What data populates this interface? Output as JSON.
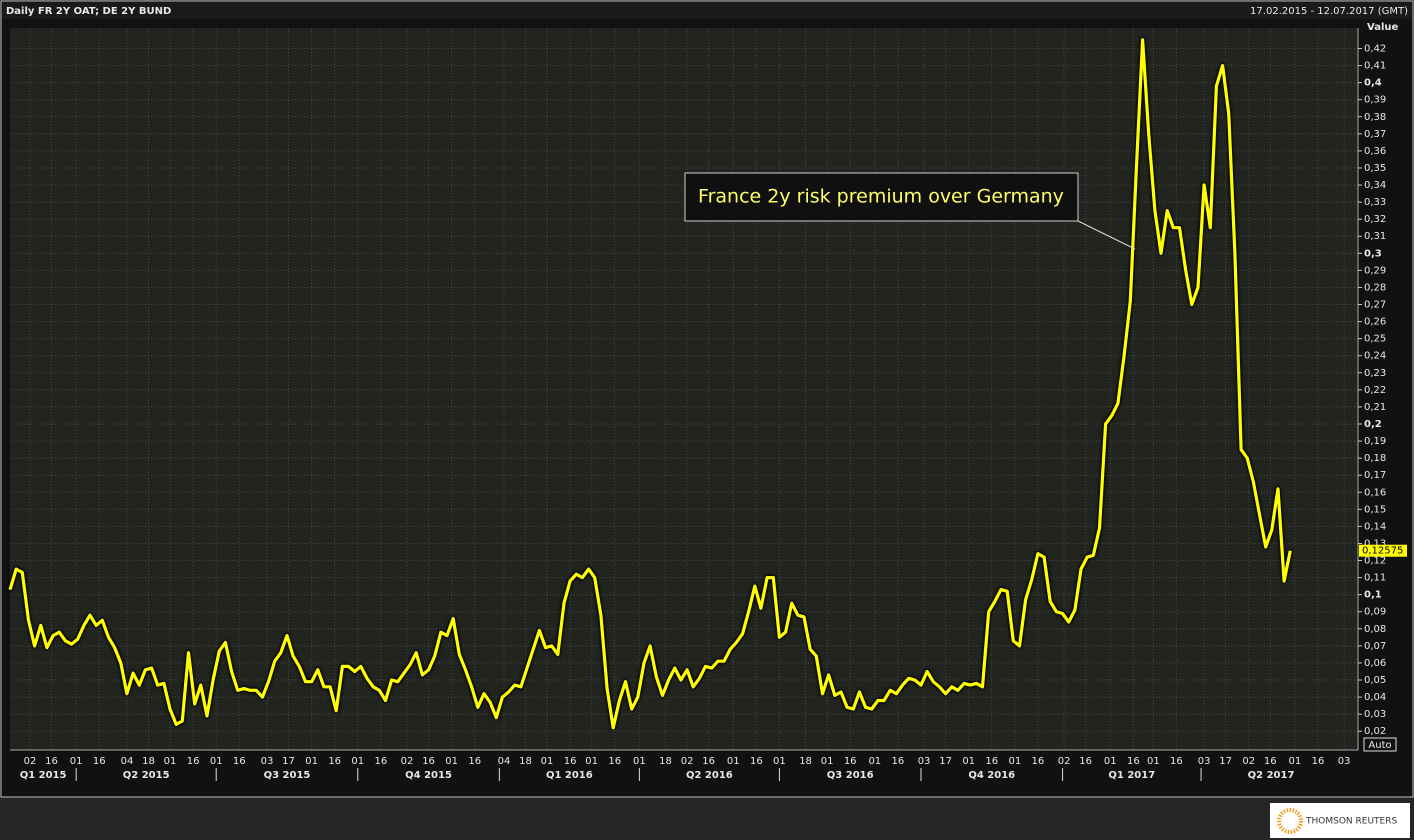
{
  "chart_data": {
    "type": "line",
    "title": "Daily FR 2Y OAT; DE 2Y BUND",
    "subtitle": "17.02.2015 - 12.07.2017 (GMT)",
    "ylabel": "Value",
    "annotation": "France 2y risk premium over Germany",
    "button": "Auto",
    "logo": "THOMSON REUTERS",
    "grid": true,
    "series": [
      {
        "name": "FR 2Y OAT; DE 2Y BUND",
        "color": "#ffff00",
        "x": [
          "2015-02-17",
          "2015-02-21",
          "2015-02-25",
          "2015-03-01",
          "2015-03-05",
          "2015-03-09",
          "2015-03-13",
          "2015-03-17",
          "2015-03-21",
          "2015-03-25",
          "2015-03-29",
          "2015-04-02",
          "2015-04-06",
          "2015-04-10",
          "2015-04-14",
          "2015-04-18",
          "2015-04-22",
          "2015-04-26",
          "2015-04-30",
          "2015-05-04",
          "2015-05-08",
          "2015-05-12",
          "2015-05-16",
          "2015-05-20",
          "2015-05-24",
          "2015-05-28",
          "2015-06-01",
          "2015-06-05",
          "2015-06-09",
          "2015-06-13",
          "2015-06-17",
          "2015-06-21",
          "2015-06-25",
          "2015-06-29",
          "2015-07-03",
          "2015-07-07",
          "2015-07-11",
          "2015-07-15",
          "2015-07-19",
          "2015-07-23",
          "2015-07-27",
          "2015-07-31",
          "2015-08-04",
          "2015-08-08",
          "2015-08-12",
          "2015-08-16",
          "2015-08-20",
          "2015-08-24",
          "2015-08-28",
          "2015-09-01",
          "2015-09-05",
          "2015-09-09",
          "2015-09-13",
          "2015-09-17",
          "2015-09-21",
          "2015-09-25",
          "2015-09-29",
          "2015-10-03",
          "2015-10-07",
          "2015-10-11",
          "2015-10-15",
          "2015-10-19",
          "2015-10-23",
          "2015-10-27",
          "2015-10-31",
          "2015-11-04",
          "2015-11-08",
          "2015-11-12",
          "2015-11-16",
          "2015-11-20",
          "2015-11-24",
          "2015-11-28",
          "2015-12-02",
          "2015-12-06",
          "2015-12-10",
          "2015-12-14",
          "2015-12-18",
          "2015-12-22",
          "2015-12-26",
          "2015-12-30",
          "2016-01-03",
          "2016-01-07",
          "2016-01-11",
          "2016-01-15",
          "2016-01-19",
          "2016-01-23",
          "2016-01-27",
          "2016-01-31",
          "2016-02-04",
          "2016-02-08",
          "2016-02-12",
          "2016-02-16",
          "2016-02-20",
          "2016-02-24",
          "2016-02-28",
          "2016-03-03",
          "2016-03-07",
          "2016-03-11",
          "2016-03-15",
          "2016-03-19",
          "2016-03-23",
          "2016-03-27",
          "2016-03-31",
          "2016-04-04",
          "2016-04-08",
          "2016-04-12",
          "2016-04-16",
          "2016-04-20",
          "2016-04-24",
          "2016-04-28",
          "2016-05-02",
          "2016-05-06",
          "2016-05-10",
          "2016-05-14",
          "2016-05-18",
          "2016-05-22",
          "2016-05-26",
          "2016-05-30",
          "2016-06-03",
          "2016-06-07",
          "2016-06-11",
          "2016-06-15",
          "2016-06-19",
          "2016-06-23",
          "2016-06-27",
          "2016-07-01",
          "2016-07-05",
          "2016-07-09",
          "2016-07-13",
          "2016-07-17",
          "2016-07-21",
          "2016-07-25",
          "2016-07-29",
          "2016-08-02",
          "2016-08-06",
          "2016-08-10",
          "2016-08-14",
          "2016-08-18",
          "2016-08-22",
          "2016-08-26",
          "2016-08-30",
          "2016-09-03",
          "2016-09-07",
          "2016-09-11",
          "2016-09-15",
          "2016-09-19",
          "2016-09-23",
          "2016-09-27",
          "2016-10-01",
          "2016-10-05",
          "2016-10-09",
          "2016-10-13",
          "2016-10-17",
          "2016-10-21",
          "2016-10-25",
          "2016-10-29",
          "2016-11-02",
          "2016-11-06",
          "2016-11-10",
          "2016-11-14",
          "2016-11-18",
          "2016-11-22",
          "2016-11-26",
          "2016-11-30",
          "2016-12-04",
          "2016-12-08",
          "2016-12-12",
          "2016-12-16",
          "2016-12-20",
          "2016-12-24",
          "2016-12-28",
          "2017-01-01",
          "2017-01-05",
          "2017-01-09",
          "2017-01-13",
          "2017-01-17",
          "2017-01-21",
          "2017-01-25",
          "2017-01-29",
          "2017-02-02",
          "2017-02-06",
          "2017-02-10",
          "2017-02-14",
          "2017-02-18",
          "2017-02-22",
          "2017-02-26",
          "2017-03-02",
          "2017-03-06",
          "2017-03-10",
          "2017-03-14",
          "2017-03-18",
          "2017-03-22",
          "2017-03-26",
          "2017-03-30",
          "2017-04-03",
          "2017-04-07",
          "2017-04-11",
          "2017-04-15",
          "2017-04-19",
          "2017-04-23",
          "2017-04-27",
          "2017-05-01",
          "2017-05-05",
          "2017-05-09",
          "2017-05-13",
          "2017-05-17",
          "2017-05-21",
          "2017-05-25",
          "2017-05-29"
        ],
        "values": [
          0.103,
          0.115,
          0.113,
          0.085,
          0.07,
          0.082,
          0.069,
          0.076,
          0.078,
          0.073,
          0.071,
          0.074,
          0.082,
          0.088,
          0.082,
          0.085,
          0.075,
          0.069,
          0.06,
          0.042,
          0.054,
          0.047,
          0.056,
          0.057,
          0.047,
          0.048,
          0.033,
          0.024,
          0.026,
          0.066,
          0.036,
          0.047,
          0.029,
          0.05,
          0.067,
          0.072,
          0.055,
          0.044,
          0.045,
          0.044,
          0.044,
          0.04,
          0.049,
          0.061,
          0.066,
          0.076,
          0.064,
          0.058,
          0.049,
          0.049,
          0.056,
          0.046,
          0.046,
          0.032,
          0.058,
          0.058,
          0.055,
          0.058,
          0.051,
          0.046,
          0.044,
          0.038,
          0.05,
          0.049,
          0.054,
          0.059,
          0.066,
          0.053,
          0.056,
          0.064,
          0.078,
          0.076,
          0.086,
          0.065,
          0.056,
          0.046,
          0.034,
          0.042,
          0.037,
          0.028,
          0.04,
          0.043,
          0.047,
          0.046,
          0.057,
          0.068,
          0.079,
          0.069,
          0.07,
          0.065,
          0.095,
          0.108,
          0.112,
          0.11,
          0.115,
          0.11,
          0.088,
          0.045,
          0.022,
          0.038,
          0.049,
          0.033,
          0.04,
          0.06,
          0.07,
          0.052,
          0.041,
          0.05,
          0.057,
          0.05,
          0.056,
          0.046,
          0.051,
          0.058,
          0.057,
          0.061,
          0.061,
          0.068,
          0.072,
          0.077,
          0.09,
          0.105,
          0.092,
          0.11,
          0.11,
          0.075,
          0.078,
          0.095,
          0.088,
          0.087,
          0.068,
          0.064,
          0.042,
          0.053,
          0.041,
          0.043,
          0.034,
          0.033,
          0.043,
          0.034,
          0.033,
          0.038,
          0.038,
          0.044,
          0.042,
          0.047,
          0.051,
          0.05,
          0.047,
          0.055,
          0.049,
          0.046,
          0.042,
          0.046,
          0.044,
          0.048,
          0.047,
          0.048,
          0.046,
          0.09,
          0.096,
          0.103,
          0.102,
          0.073,
          0.07,
          0.097,
          0.109,
          0.124,
          0.122,
          0.096,
          0.09,
          0.089,
          0.084,
          0.091,
          0.115,
          0.122,
          0.123,
          0.139,
          0.2,
          0.205,
          0.212,
          0.24,
          0.272,
          0.35,
          0.425,
          0.37,
          0.325,
          0.3,
          0.325,
          0.315,
          0.315,
          0.29,
          0.27,
          0.28,
          0.34,
          0.315,
          0.398,
          0.41,
          0.382,
          0.3,
          0.185,
          0.18,
          0.166,
          0.147,
          0.128,
          0.138,
          0.162,
          0.108,
          0.12575
        ],
        "last_label": "0,12575"
      }
    ],
    "xlim": [
      "2015-02-17",
      "2017-07-12"
    ],
    "xticks": [
      {
        "value": "2015-03-02",
        "label": "02"
      },
      {
        "value": "2015-03-16",
        "label": "16"
      },
      {
        "value": "2015-04-01",
        "label": "01"
      },
      {
        "value": "2015-04-16",
        "label": "16"
      },
      {
        "value": "2015-05-04",
        "label": "04"
      },
      {
        "value": "2015-05-18",
        "label": "18"
      },
      {
        "value": "2015-06-01",
        "label": "01"
      },
      {
        "value": "2015-06-16",
        "label": "16"
      },
      {
        "value": "2015-07-01",
        "label": "01"
      },
      {
        "value": "2015-07-16",
        "label": "16"
      },
      {
        "value": "2015-08-03",
        "label": "03"
      },
      {
        "value": "2015-08-17",
        "label": "17"
      },
      {
        "value": "2015-09-01",
        "label": "01"
      },
      {
        "value": "2015-09-16",
        "label": "16"
      },
      {
        "value": "2015-10-01",
        "label": "01"
      },
      {
        "value": "2015-10-16",
        "label": "16"
      },
      {
        "value": "2015-11-02",
        "label": "02"
      },
      {
        "value": "2015-11-16",
        "label": "16"
      },
      {
        "value": "2015-12-01",
        "label": "01"
      },
      {
        "value": "2015-12-16",
        "label": "16"
      },
      {
        "value": "2016-01-04",
        "label": "04"
      },
      {
        "value": "2016-01-18",
        "label": "18"
      },
      {
        "value": "2016-02-01",
        "label": "01"
      },
      {
        "value": "2016-02-16",
        "label": "16"
      },
      {
        "value": "2016-03-01",
        "label": "01"
      },
      {
        "value": "2016-03-16",
        "label": "16"
      },
      {
        "value": "2016-04-01",
        "label": "01"
      },
      {
        "value": "2016-04-18",
        "label": "18"
      },
      {
        "value": "2016-05-02",
        "label": "02"
      },
      {
        "value": "2016-05-16",
        "label": "16"
      },
      {
        "value": "2016-06-01",
        "label": "01"
      },
      {
        "value": "2016-06-16",
        "label": "16"
      },
      {
        "value": "2016-07-01",
        "label": "01"
      },
      {
        "value": "2016-07-18",
        "label": "18"
      },
      {
        "value": "2016-08-01",
        "label": "01"
      },
      {
        "value": "2016-08-16",
        "label": "16"
      },
      {
        "value": "2016-09-01",
        "label": "01"
      },
      {
        "value": "2016-09-16",
        "label": "16"
      },
      {
        "value": "2016-10-03",
        "label": "03"
      },
      {
        "value": "2016-10-17",
        "label": "17"
      },
      {
        "value": "2016-11-01",
        "label": "01"
      },
      {
        "value": "2016-11-16",
        "label": "16"
      },
      {
        "value": "2016-12-01",
        "label": "01"
      },
      {
        "value": "2016-12-16",
        "label": "16"
      },
      {
        "value": "2017-01-02",
        "label": "02"
      },
      {
        "value": "2017-01-16",
        "label": "16"
      },
      {
        "value": "2017-02-01",
        "label": "01"
      },
      {
        "value": "2017-02-16",
        "label": "16"
      },
      {
        "value": "2017-03-01",
        "label": "01"
      },
      {
        "value": "2017-03-16",
        "label": "16"
      },
      {
        "value": "2017-04-03",
        "label": "03"
      },
      {
        "value": "2017-04-17",
        "label": "17"
      },
      {
        "value": "2017-05-02",
        "label": "02"
      },
      {
        "value": "2017-05-16",
        "label": "16"
      },
      {
        "value": "2017-06-01",
        "label": "01"
      },
      {
        "value": "2017-06-16",
        "label": "16"
      },
      {
        "value": "2017-07-03",
        "label": "03"
      }
    ],
    "quarters": [
      {
        "value": "2015-01-01",
        "label": "Q1 2015"
      },
      {
        "value": "2015-04-01",
        "label": "Q2 2015"
      },
      {
        "value": "2015-07-01",
        "label": "Q3 2015"
      },
      {
        "value": "2015-10-01",
        "label": "Q4 2015"
      },
      {
        "value": "2016-01-01",
        "label": "Q1 2016"
      },
      {
        "value": "2016-04-01",
        "label": "Q2 2016"
      },
      {
        "value": "2016-07-01",
        "label": "Q3 2016"
      },
      {
        "value": "2016-10-01",
        "label": "Q4 2016"
      },
      {
        "value": "2017-01-01",
        "label": "Q1 2017"
      },
      {
        "value": "2017-04-01",
        "label": "Q2 2017"
      }
    ],
    "ylim": [
      0.009,
      0.432
    ],
    "yticks": [
      {
        "value": 0.02,
        "label": "0,02"
      },
      {
        "value": 0.03,
        "label": "0,03"
      },
      {
        "value": 0.04,
        "label": "0,04"
      },
      {
        "value": 0.05,
        "label": "0,05"
      },
      {
        "value": 0.06,
        "label": "0,06"
      },
      {
        "value": 0.07,
        "label": "0,07"
      },
      {
        "value": 0.08,
        "label": "0,08"
      },
      {
        "value": 0.09,
        "label": "0,09"
      },
      {
        "value": 0.1,
        "label": "0,1"
      },
      {
        "value": 0.11,
        "label": "0,11"
      },
      {
        "value": 0.12,
        "label": "0,12"
      },
      {
        "value": 0.13,
        "label": "0,13"
      },
      {
        "value": 0.14,
        "label": "0,14"
      },
      {
        "value": 0.15,
        "label": "0,15"
      },
      {
        "value": 0.16,
        "label": "0,16"
      },
      {
        "value": 0.17,
        "label": "0,17"
      },
      {
        "value": 0.18,
        "label": "0,18"
      },
      {
        "value": 0.19,
        "label": "0,19"
      },
      {
        "value": 0.2,
        "label": "0,2"
      },
      {
        "value": 0.21,
        "label": "0,21"
      },
      {
        "value": 0.22,
        "label": "0,22"
      },
      {
        "value": 0.23,
        "label": "0,23"
      },
      {
        "value": 0.24,
        "label": "0,24"
      },
      {
        "value": 0.25,
        "label": "0,25"
      },
      {
        "value": 0.26,
        "label": "0,26"
      },
      {
        "value": 0.27,
        "label": "0,27"
      },
      {
        "value": 0.28,
        "label": "0,28"
      },
      {
        "value": 0.29,
        "label": "0,29"
      },
      {
        "value": 0.3,
        "label": "0,3"
      },
      {
        "value": 0.31,
        "label": "0,31"
      },
      {
        "value": 0.32,
        "label": "0,32"
      },
      {
        "value": 0.33,
        "label": "0,33"
      },
      {
        "value": 0.34,
        "label": "0,34"
      },
      {
        "value": 0.35,
        "label": "0,35"
      },
      {
        "value": 0.36,
        "label": "0,36"
      },
      {
        "value": 0.37,
        "label": "0,37"
      },
      {
        "value": 0.38,
        "label": "0,38"
      },
      {
        "value": 0.39,
        "label": "0,39"
      },
      {
        "value": 0.4,
        "label": "0,4"
      },
      {
        "value": 0.41,
        "label": "0,41"
      },
      {
        "value": 0.42,
        "label": "0,42"
      }
    ]
  }
}
